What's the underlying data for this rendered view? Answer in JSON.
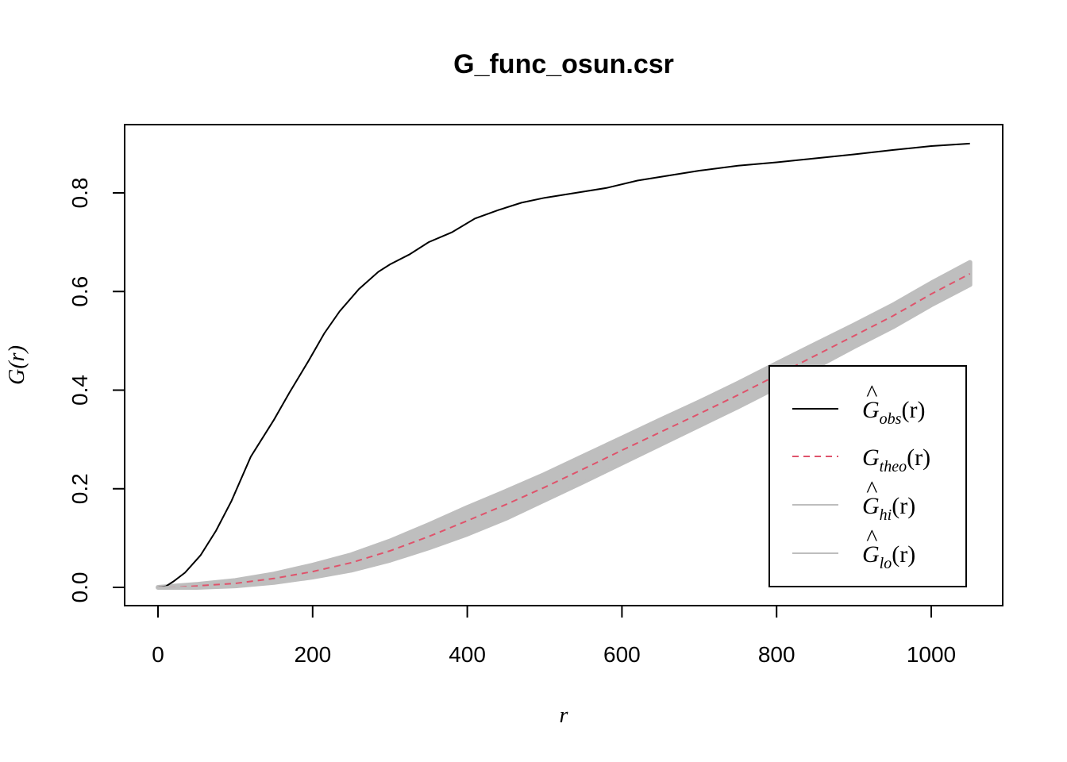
{
  "chart_data": {
    "type": "line",
    "title": "G_func_osun.csr",
    "xlabel": "r",
    "ylabel": "G(r)",
    "xlim": [
      0,
      1050
    ],
    "ylim": [
      0,
      0.9
    ],
    "x_ticks": [
      "0",
      "200",
      "400",
      "600",
      "800",
      "1000"
    ],
    "y_ticks": [
      "0.0",
      "0.2",
      "0.4",
      "0.6",
      "0.8"
    ],
    "legend_position": "bottom-right",
    "series": [
      {
        "name": "Ĝ_obs(r)",
        "color": "#000000",
        "style": "solid",
        "x": [
          0,
          10,
          20,
          35,
          55,
          75,
          95,
          120,
          150,
          170,
          195,
          215,
          235,
          260,
          285,
          300,
          325,
          350,
          380,
          410,
          440,
          470,
          500,
          540,
          580,
          620,
          660,
          700,
          750,
          800,
          850,
          900,
          950,
          1000,
          1050
        ],
        "y": [
          0,
          0.002,
          0.012,
          0.03,
          0.065,
          0.115,
          0.175,
          0.265,
          0.34,
          0.395,
          0.46,
          0.515,
          0.56,
          0.605,
          0.64,
          0.655,
          0.675,
          0.7,
          0.72,
          0.748,
          0.765,
          0.78,
          0.79,
          0.8,
          0.81,
          0.825,
          0.835,
          0.845,
          0.855,
          0.862,
          0.87,
          0.878,
          0.887,
          0.895,
          0.9
        ]
      },
      {
        "name": "G_theo(r)",
        "color": "#DF536B",
        "style": "dashed",
        "x": [
          0,
          50,
          100,
          150,
          200,
          250,
          300,
          350,
          400,
          450,
          500,
          550,
          600,
          650,
          700,
          750,
          800,
          850,
          900,
          950,
          1000,
          1050
        ],
        "y": [
          0,
          0.003,
          0.008,
          0.018,
          0.032,
          0.05,
          0.074,
          0.103,
          0.135,
          0.168,
          0.203,
          0.24,
          0.278,
          0.315,
          0.352,
          0.39,
          0.43,
          0.47,
          0.51,
          0.55,
          0.595,
          0.636
        ]
      },
      {
        "name": "Ĝ_hi(r)",
        "color": "#BEBEBE",
        "style": "solid",
        "x": [
          0,
          50,
          100,
          150,
          200,
          250,
          300,
          350,
          400,
          450,
          500,
          550,
          600,
          650,
          700,
          750,
          800,
          850,
          900,
          950,
          1000,
          1050
        ],
        "y": [
          0,
          0.006,
          0.014,
          0.027,
          0.045,
          0.066,
          0.094,
          0.127,
          0.162,
          0.195,
          0.229,
          0.266,
          0.303,
          0.34,
          0.376,
          0.414,
          0.454,
          0.493,
          0.532,
          0.572,
          0.617,
          0.659
        ]
      },
      {
        "name": "Ĝ_lo(r)",
        "color": "#BEBEBE",
        "style": "solid",
        "x": [
          0,
          50,
          100,
          150,
          200,
          250,
          300,
          350,
          400,
          450,
          500,
          550,
          600,
          650,
          700,
          750,
          800,
          850,
          900,
          950,
          1000,
          1050
        ],
        "y": [
          0,
          0.0,
          0.003,
          0.01,
          0.021,
          0.035,
          0.055,
          0.08,
          0.108,
          0.14,
          0.177,
          0.214,
          0.252,
          0.29,
          0.328,
          0.366,
          0.406,
          0.446,
          0.488,
          0.528,
          0.573,
          0.614
        ]
      }
    ]
  },
  "legend": {
    "main_sym": "G",
    "hat": "^",
    "arg": "(r)",
    "entries": [
      {
        "sub": "obs"
      },
      {
        "sub": "theo"
      },
      {
        "sub": "hi"
      },
      {
        "sub": "lo"
      }
    ]
  }
}
